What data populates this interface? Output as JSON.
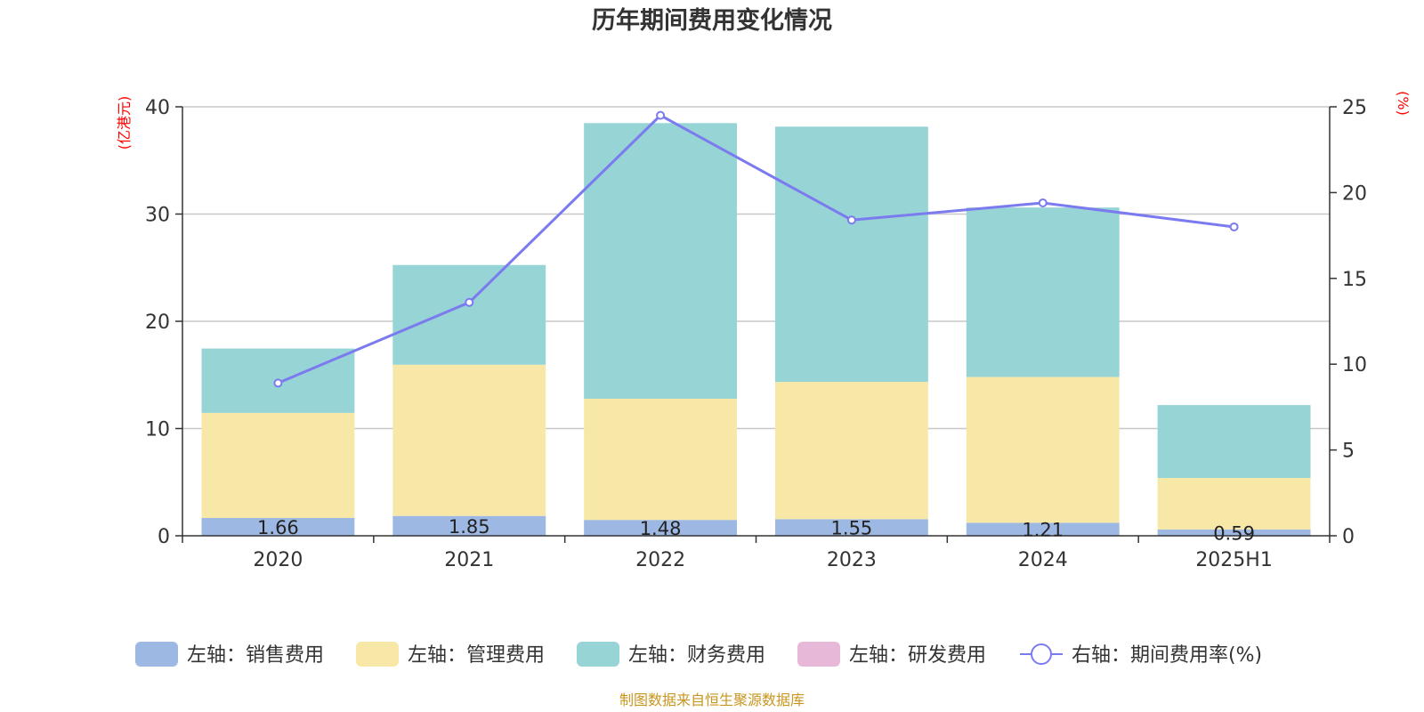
{
  "chart_data": {
    "type": "bar",
    "title": "历年期间费用变化情况",
    "categories": [
      "2020",
      "2021",
      "2022",
      "2023",
      "2024",
      "2025H1"
    ],
    "left_axis": {
      "unit": "(亿港元)",
      "ylim": [
        0,
        40
      ],
      "ticks": [
        0,
        10,
        20,
        30,
        40
      ]
    },
    "right_axis": {
      "unit": "(%)",
      "ylim": [
        0,
        25
      ],
      "ticks": [
        0,
        5,
        10,
        15,
        20,
        25
      ]
    },
    "series": [
      {
        "name": "左轴：销售费用",
        "type": "bar",
        "axis": "left",
        "color": "#9db8e2",
        "values": [
          1.66,
          1.85,
          1.48,
          1.55,
          1.21,
          0.59
        ],
        "data_labels": [
          "1.66",
          "1.85",
          "1.48",
          "1.55",
          "1.21",
          "0.59"
        ]
      },
      {
        "name": "左轴：管理费用",
        "type": "bar",
        "axis": "left",
        "color": "#f8e8a8",
        "values": [
          9.8,
          14.1,
          11.3,
          12.8,
          13.6,
          4.8
        ]
      },
      {
        "name": "左轴：财务费用",
        "type": "bar",
        "axis": "left",
        "color": "#97d4d5",
        "values": [
          6.0,
          9.3,
          25.7,
          23.8,
          15.8,
          6.8
        ]
      },
      {
        "name": "左轴：研发费用",
        "type": "bar",
        "axis": "left",
        "color": "#e8b8d8",
        "values": [
          0,
          0,
          0,
          0,
          0,
          0
        ]
      },
      {
        "name": "右轴：期间费用率(%)",
        "type": "line",
        "axis": "right",
        "color": "#7b7bef",
        "values": [
          8.9,
          13.6,
          24.5,
          18.4,
          19.4,
          18.0
        ]
      }
    ],
    "grid": true,
    "legend_position": "bottom"
  },
  "footer": {
    "source": "制图数据来自恒生聚源数据库"
  }
}
